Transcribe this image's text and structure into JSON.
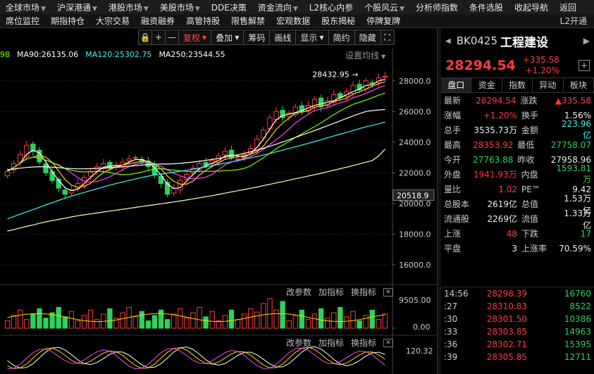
{
  "menu": [
    {
      "label": "全球市场",
      "arrow": true
    },
    {
      "label": "沪深港通",
      "arrow": true
    },
    {
      "label": "港股市场",
      "arrow": true
    },
    {
      "label": "美股市场",
      "arrow": true
    },
    {
      "label": "DDE决策",
      "arrow": false
    },
    {
      "label": "资金流向",
      "arrow": true
    },
    {
      "label": "L2核心内参",
      "arrow": false
    },
    {
      "label": "个股风云",
      "arrow": true
    },
    {
      "label": "分析师指数",
      "arrow": false
    },
    {
      "label": "条件选股",
      "arrow": false
    },
    {
      "label": "收起导航",
      "arrow": false
    },
    {
      "label": "返回",
      "arrow": false
    }
  ],
  "nav": [
    "席位监控",
    "期指持仓",
    "大宗交易",
    "融资融券",
    "高管持股",
    "限售解禁",
    "宏观数据",
    "股东揭秘",
    "停牌复牌"
  ],
  "nav_right": "L2开通",
  "toolbar": {
    "lock": "🔒",
    "plus": "+",
    "minus": "—",
    "fuquan": "复权",
    "diejia": "叠加",
    "chouma": "筹码",
    "huaxian": "画线",
    "xianshi": "显示",
    "jianyue": "简约",
    "yincang": "隐藏",
    "expand": "⛶"
  },
  "ma_legend": [
    {
      "text": "98",
      "color": "#7cfc00"
    },
    {
      "text": "MA90:26135.06",
      "color": "#ffffff"
    },
    {
      "text": "MA120:25302.75",
      "color": "#3ef3f3"
    },
    {
      "text": "MA250:23544.55",
      "color": "#ffffff"
    }
  ],
  "settings_label": "设置均线",
  "sub_tools": {
    "a": "改参数",
    "b": "加指标",
    "c": "换指标",
    "x": "✕"
  },
  "colors": {
    "up": "#ff3b3b",
    "down": "#2fd15b",
    "ma5": "#ffffff",
    "ma10": "#ffd700",
    "ma20": "#ff44ff",
    "ma60": "#7cfc00",
    "ma120": "#3ef3f3",
    "ma250": "#ffffaa"
  },
  "chart_data": {
    "type": "candlestick",
    "price_axis": {
      "ticks": [
        28000,
        26000,
        24000,
        22000,
        20000,
        18000,
        16000
      ],
      "ylim": [
        14800,
        29600
      ]
    },
    "price_labels": [
      "28000.0",
      "26000.0",
      "24000.0",
      "22000.0",
      "20000.0",
      "18000.0",
      "16000.0"
    ],
    "current_marker": "20518.9",
    "high_annotation": "28432.95",
    "close_series": [
      22100,
      22600,
      23200,
      23800,
      23400,
      22700,
      22000,
      21500,
      21000,
      20600,
      20900,
      21300,
      21700,
      22100,
      22400,
      22600,
      22300,
      22500,
      22700,
      22900,
      23000,
      22700,
      22400,
      21900,
      21300,
      20600,
      21000,
      21500,
      21900,
      22300,
      22600,
      22500,
      22800,
      23100,
      23400,
      23000,
      22900,
      23200,
      23600,
      24200,
      24800,
      25600,
      26000,
      25600,
      25900,
      26300,
      26000,
      26400,
      26800,
      26300,
      26700,
      27100,
      26900,
      27300,
      27700,
      27400,
      28000,
      27800,
      28200,
      28294
    ],
    "ma_series": {
      "MA90": [
        22200,
        22250,
        22300,
        22350,
        22380,
        22400,
        22390,
        22370,
        22340,
        22300,
        22280,
        22260,
        22260,
        22270,
        22290,
        22310,
        22330,
        22360,
        22390,
        22430,
        22470,
        22510,
        22540,
        22560,
        22570,
        22570,
        22590,
        22620,
        22660,
        22700,
        22750,
        22810,
        22870,
        22940,
        23020,
        23100,
        23180,
        23270,
        23370,
        23480,
        23600,
        23730,
        23870,
        24010,
        24160,
        24310,
        24460,
        24610,
        24760,
        24910,
        25070,
        25230,
        25390,
        25550,
        25710,
        25860,
        26000,
        26060,
        26100,
        26135
      ],
      "MA120": [
        19000,
        19150,
        19300,
        19450,
        19600,
        19750,
        19900,
        20050,
        20200,
        20350,
        20480,
        20600,
        20720,
        20840,
        20960,
        21080,
        21200,
        21300,
        21400,
        21500,
        21600,
        21700,
        21780,
        21860,
        21920,
        21980,
        22040,
        22100,
        22170,
        22240,
        22310,
        22390,
        22470,
        22550,
        22630,
        22710,
        22790,
        22880,
        22970,
        23060,
        23160,
        23260,
        23370,
        23480,
        23590,
        23700,
        23810,
        23920,
        24040,
        24160,
        24280,
        24400,
        24520,
        24640,
        24760,
        24880,
        25000,
        25100,
        25200,
        25302
      ],
      "MA250": [
        18200,
        18300,
        18400,
        18500,
        18600,
        18700,
        18800,
        18880,
        18960,
        19040,
        19120,
        19200,
        19260,
        19320,
        19380,
        19440,
        19500,
        19560,
        19620,
        19680,
        19740,
        19800,
        19860,
        19920,
        19980,
        20040,
        20100,
        20160,
        20230,
        20300,
        20370,
        20440,
        20510,
        20590,
        20670,
        20750,
        20830,
        20910,
        20990,
        21070,
        21160,
        21250,
        21340,
        21430,
        21520,
        21610,
        21700,
        21790,
        21880,
        21970,
        22070,
        22170,
        22270,
        22370,
        22470,
        22580,
        22690,
        22800,
        23100,
        23544
      ]
    },
    "volume_axis": {
      "labels": [
        "9505.00",
        "0.00"
      ]
    },
    "indicator_axis": {
      "labels": [
        "120.32"
      ]
    }
  },
  "quote": {
    "code": "BK0425",
    "name": "工程建设",
    "price": "28294.54",
    "change": "+335.58",
    "pct": "+1.20%",
    "plus": "+",
    "tabs": [
      "盘口",
      "资金",
      "指数",
      "异动",
      "板块"
    ],
    "rows": [
      {
        "k": "最新",
        "v": "28294.54",
        "vc": "red",
        "k2": "涨跌",
        "v2": "▲335.58",
        "v2c": "red"
      },
      {
        "k": "涨幅",
        "v": "+1.20%",
        "vc": "red",
        "k2": "换手",
        "v2": "1.56%",
        "v2c": "white"
      },
      {
        "k": "总手",
        "v": "3535.73万",
        "vc": "white",
        "k2": "金额",
        "v2": "223.96亿",
        "v2c": "cyan"
      },
      {
        "k": "最高",
        "v": "28353.92",
        "vc": "red",
        "k2": "最低",
        "v2": "27758.07",
        "v2c": "green"
      },
      {
        "k": "今开",
        "v": "27763.88",
        "vc": "green",
        "k2": "昨收",
        "v2": "27958.96",
        "v2c": "white"
      },
      {
        "k": "外盘",
        "v": "1941.93万",
        "vc": "red",
        "k2": "内盘",
        "v2": "1593.81万",
        "v2c": "green"
      },
      {
        "k": "量比",
        "v": "1.02",
        "vc": "red",
        "k2": "PE™",
        "v2": "9.42",
        "v2c": "white"
      },
      {
        "k": "总股本",
        "v": "2619亿",
        "vc": "white",
        "k2": "总值",
        "v2": "1.53万亿",
        "v2c": "white"
      },
      {
        "k": "流通股",
        "v": "2269亿",
        "vc": "white",
        "k2": "流值",
        "v2": "1.33万亿",
        "v2c": "white"
      },
      {
        "k": "上涨",
        "v": "48",
        "vc": "red",
        "k2": "下跌",
        "v2": "17",
        "v2c": "green"
      },
      {
        "k": "平盘",
        "v": "3",
        "vc": "white",
        "k2": "上涨率",
        "v2": "70.59%",
        "v2c": "white"
      }
    ],
    "ticks": [
      {
        "t": "14:56",
        "p": "28298.39",
        "v": "16760"
      },
      {
        "t": ":27",
        "p": "28310.83",
        "v": "8522"
      },
      {
        "t": ":30",
        "p": "28301.50",
        "v": "10386"
      },
      {
        "t": ":33",
        "p": "28303.85",
        "v": "14963"
      },
      {
        "t": ":36",
        "p": "28302.71",
        "v": "15395"
      },
      {
        "t": ":39",
        "p": "28305.85",
        "v": "12711"
      }
    ]
  }
}
